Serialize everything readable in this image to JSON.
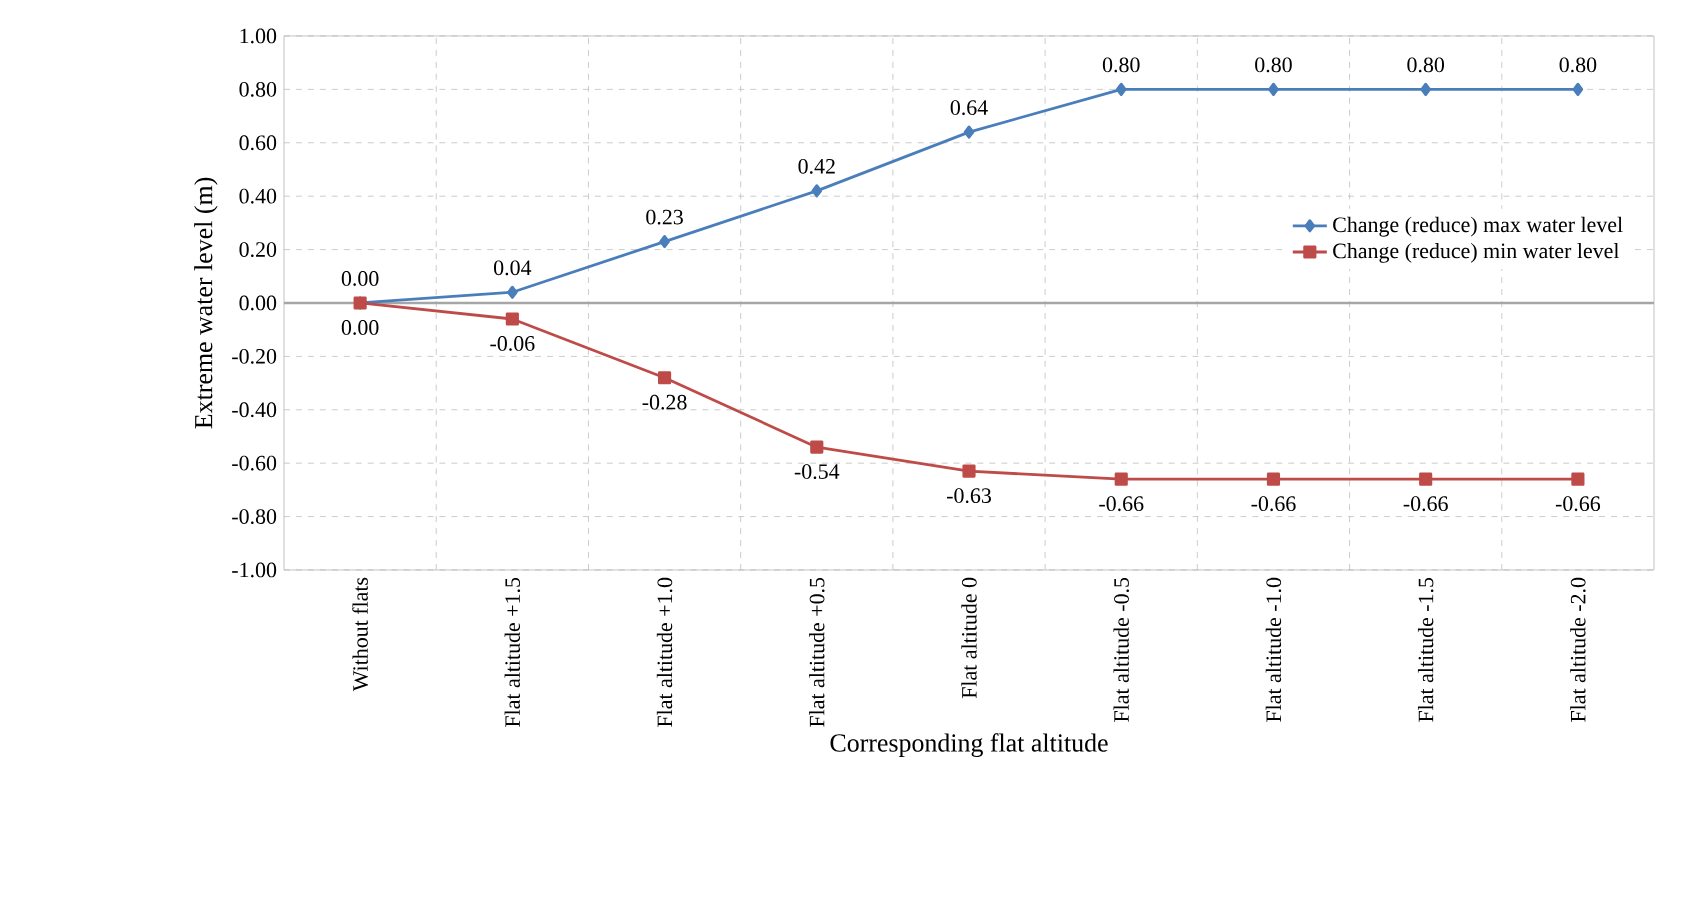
{
  "chart_data": {
    "type": "line",
    "ylabel": "Extreme water level (m)",
    "xlabel": "Corresponding flat altitude",
    "categories": [
      "Without flats",
      "Flat altitude +1.5",
      "Flat altitude +1.0",
      "Flat altitude +0.5",
      "Flat altitude 0",
      "Flat altitude -0.5",
      "Flat altitude -1.0",
      "Flat altitude -1.5",
      "Flat altitude -2.0"
    ],
    "series": [
      {
        "name": "Change (reduce) max water level",
        "color": "#4a7ebb",
        "marker": "diamond",
        "values": [
          0.0,
          0.04,
          0.23,
          0.42,
          0.64,
          0.8,
          0.8,
          0.8,
          0.8
        ],
        "value_labels": [
          "0.00",
          "0.04",
          "0.23",
          "0.42",
          "0.64",
          "0.80",
          "0.80",
          "0.80",
          "0.80"
        ]
      },
      {
        "name": "Change (reduce) min water level",
        "color": "#be4b48",
        "marker": "square",
        "values": [
          0.0,
          -0.06,
          -0.28,
          -0.54,
          -0.63,
          -0.66,
          -0.66,
          -0.66,
          -0.66
        ],
        "value_labels": [
          "0.00",
          "-0.06",
          "-0.28",
          "-0.54",
          "-0.63",
          "-0.66",
          "-0.66",
          "-0.66",
          "-0.66"
        ]
      }
    ],
    "ylim": [
      -1.0,
      1.0
    ],
    "yticks": [
      {
        "value": -1.0,
        "label": "-1.00"
      },
      {
        "value": -0.8,
        "label": "-0.80"
      },
      {
        "value": -0.6,
        "label": "-0.60"
      },
      {
        "value": -0.4,
        "label": "-0.40"
      },
      {
        "value": -0.2,
        "label": "-0.20"
      },
      {
        "value": 0.0,
        "label": "0.00"
      },
      {
        "value": 0.2,
        "label": "0.20"
      },
      {
        "value": 0.4,
        "label": "0.40"
      },
      {
        "value": 0.6,
        "label": "0.60"
      },
      {
        "value": 0.8,
        "label": "0.80"
      },
      {
        "value": 1.0,
        "label": "1.00"
      }
    ],
    "grid": true,
    "legend": "right",
    "line_style": "solid"
  }
}
